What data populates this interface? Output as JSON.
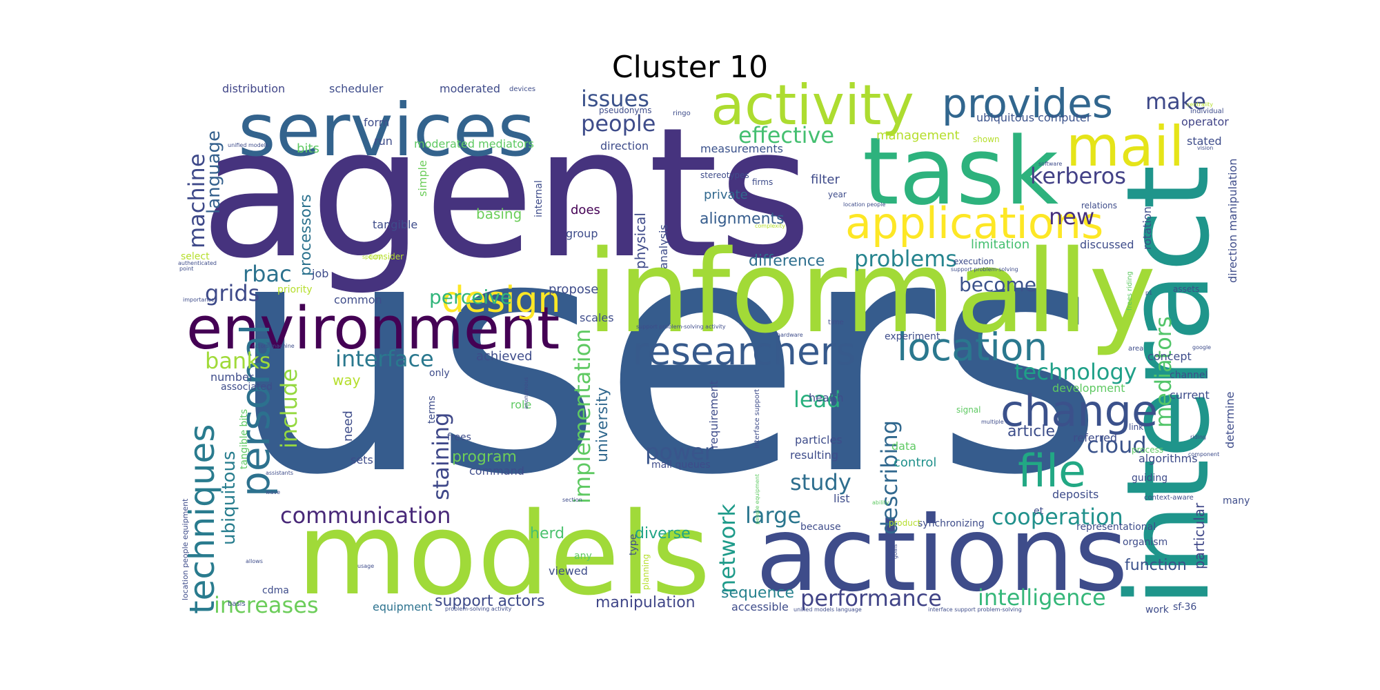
{
  "title": "Cluster 10",
  "palette": "viridis",
  "words": [
    {
      "text": "users",
      "color": "#365c8d"
    },
    {
      "text": "agents",
      "color": "#46337e"
    },
    {
      "text": "informally",
      "color": "#a2da37"
    },
    {
      "text": "models",
      "color": "#a0da39"
    },
    {
      "text": "interact",
      "color": "#1f958b"
    },
    {
      "text": "actions",
      "color": "#3e4c8a"
    },
    {
      "text": "task",
      "color": "#2db27d"
    },
    {
      "text": "services",
      "color": "#33638d"
    },
    {
      "text": "environment",
      "color": "#440154"
    },
    {
      "text": "activity",
      "color": "#addc30"
    },
    {
      "text": "mail",
      "color": "#e5e419"
    },
    {
      "text": "applications",
      "color": "#fde725"
    },
    {
      "text": "provides",
      "color": "#31668e"
    },
    {
      "text": "researchers",
      "color": "#375a8c"
    },
    {
      "text": "location",
      "color": "#2a788e"
    },
    {
      "text": "design",
      "color": "#fde725"
    },
    {
      "text": "change",
      "color": "#3b518b"
    },
    {
      "text": "file",
      "color": "#22a884"
    },
    {
      "text": "personal",
      "color": "#2c718e"
    },
    {
      "text": "techniques",
      "color": "#297b8e"
    },
    {
      "text": "make",
      "color": "#3e4989"
    },
    {
      "text": "issues",
      "color": "#3b528b"
    },
    {
      "text": "people",
      "color": "#3e4c8a"
    },
    {
      "text": "effective",
      "color": "#44bf70"
    },
    {
      "text": "kerberos",
      "color": "#424086"
    },
    {
      "text": "problems",
      "color": "#25848e"
    },
    {
      "text": "new",
      "color": "#46307e"
    },
    {
      "text": "rbac",
      "color": "#2c728e"
    },
    {
      "text": "grids",
      "color": "#3e4a89"
    },
    {
      "text": "banks",
      "color": "#a0da39"
    },
    {
      "text": "interface",
      "color": "#2a788e"
    },
    {
      "text": "technology",
      "color": "#1fa088"
    },
    {
      "text": "communication",
      "color": "#482878"
    },
    {
      "text": "cooperation",
      "color": "#21918c"
    },
    {
      "text": "performance",
      "color": "#414487"
    },
    {
      "text": "intelligence",
      "color": "#35b779"
    },
    {
      "text": "increases",
      "color": "#6ccd5a"
    },
    {
      "text": "lead",
      "color": "#2ab07f"
    },
    {
      "text": "study",
      "color": "#2e6e8e"
    },
    {
      "text": "large",
      "color": "#2a768e"
    },
    {
      "text": "power",
      "color": "#39558c"
    },
    {
      "text": "cloud",
      "color": "#3a538b"
    },
    {
      "text": "describing",
      "color": "#31688e"
    },
    {
      "text": "mediators",
      "color": "#52c569"
    },
    {
      "text": "network",
      "color": "#1e9b8a"
    },
    {
      "text": "implementation",
      "color": "#5ec962"
    },
    {
      "text": "staining",
      "color": "#3f4889"
    },
    {
      "text": "include",
      "color": "#95d840"
    },
    {
      "text": "ubiquitous",
      "color": "#287d8e"
    },
    {
      "text": "machine",
      "color": "#3e4989"
    },
    {
      "text": "language",
      "color": "#34608d"
    },
    {
      "text": "perceive",
      "color": "#31b57b"
    },
    {
      "text": "alignments",
      "color": "#365d8d"
    },
    {
      "text": "difference",
      "color": "#2e6f8e"
    },
    {
      "text": "become",
      "color": "#3b528b"
    },
    {
      "text": "article",
      "color": "#3d4e8a"
    },
    {
      "text": "university",
      "color": "#31688e"
    },
    {
      "text": "program",
      "color": "#6ece58"
    },
    {
      "text": "manipulation",
      "color": "#404688"
    },
    {
      "text": "support actors",
      "color": "#3e4a89"
    },
    {
      "text": "equipment",
      "color": "#2c728e"
    },
    {
      "text": "herd",
      "color": "#4ac16d"
    },
    {
      "text": "diverse",
      "color": "#20a486"
    },
    {
      "text": "sequence",
      "color": "#26828e"
    },
    {
      "text": "function",
      "color": "#3b528b"
    },
    {
      "text": "particular",
      "color": "#3f4788"
    },
    {
      "text": "processors",
      "color": "#2c728e"
    },
    {
      "text": "basing",
      "color": "#6ccd5a"
    },
    {
      "text": "distribution",
      "color": "#404588"
    },
    {
      "text": "scheduler",
      "color": "#3e4c8a"
    },
    {
      "text": "moderated",
      "color": "#3e4a89"
    },
    {
      "text": "moderated mediators",
      "color": "#5ec962"
    },
    {
      "text": "management",
      "color": "#b5de2b"
    },
    {
      "text": "ubiquitous computer",
      "color": "#3b528b"
    },
    {
      "text": "operator",
      "color": "#414487"
    },
    {
      "text": "stated",
      "color": "#3e4c8a"
    },
    {
      "text": "bits",
      "color": "#5ec962"
    },
    {
      "text": "filter",
      "color": "#3e4a89"
    },
    {
      "text": "private",
      "color": "#31688e"
    },
    {
      "text": "measurements",
      "color": "#3b528b"
    },
    {
      "text": "direction",
      "color": "#3e4c8a"
    },
    {
      "text": "run",
      "color": "#3e4c8a"
    },
    {
      "text": "form",
      "color": "#3e4c8a"
    },
    {
      "text": "does",
      "color": "#440154"
    },
    {
      "text": "group",
      "color": "#3e4c8a"
    },
    {
      "text": "tangible",
      "color": "#3e4c8a"
    },
    {
      "text": "job",
      "color": "#3e4c8a"
    },
    {
      "text": "simple",
      "color": "#6ccd5a"
    },
    {
      "text": "internal",
      "color": "#3e4c8a"
    },
    {
      "text": "physical",
      "color": "#3e4a89"
    },
    {
      "text": "analysis",
      "color": "#3e4c8a"
    },
    {
      "text": "propose",
      "color": "#3e4c8a"
    },
    {
      "text": "common",
      "color": "#3e4c8a"
    },
    {
      "text": "scales",
      "color": "#3e4c8a"
    },
    {
      "text": "achieved",
      "color": "#3e4c8a"
    },
    {
      "text": "limitation",
      "color": "#44bf70"
    },
    {
      "text": "discussed",
      "color": "#3e4c8a"
    },
    {
      "text": "rotation",
      "color": "#3e4c8a"
    },
    {
      "text": "direction manipulation",
      "color": "#3e4c8a"
    },
    {
      "text": "concept",
      "color": "#3e4c8a"
    },
    {
      "text": "channel",
      "color": "#3e4c8a"
    },
    {
      "text": "current",
      "color": "#3e4c8a"
    },
    {
      "text": "determine",
      "color": "#3e4c8a"
    },
    {
      "text": "experiment",
      "color": "#3e4c8a"
    },
    {
      "text": "development",
      "color": "#5ec962"
    },
    {
      "text": "health",
      "color": "#3e4c8a"
    },
    {
      "text": "requirement",
      "color": "#3e4c8a"
    },
    {
      "text": "way",
      "color": "#b5de2b"
    },
    {
      "text": "number",
      "color": "#3e4c8a"
    },
    {
      "text": "associated",
      "color": "#3e4c8a"
    },
    {
      "text": "need",
      "color": "#3e4c8a"
    },
    {
      "text": "role",
      "color": "#5ec962"
    },
    {
      "text": "terms",
      "color": "#3e4c8a"
    },
    {
      "text": "only",
      "color": "#3e4c8a"
    },
    {
      "text": "sets",
      "color": "#3e4c8a"
    },
    {
      "text": "command",
      "color": "#3e4c8a"
    },
    {
      "text": "mail queues",
      "color": "#3e4c8a"
    },
    {
      "text": "particles",
      "color": "#3e4c8a"
    },
    {
      "text": "resulting",
      "color": "#3e4c8a"
    },
    {
      "text": "control",
      "color": "#21918c"
    },
    {
      "text": "referred",
      "color": "#3e4c8a"
    },
    {
      "text": "deposits",
      "color": "#3e4c8a"
    },
    {
      "text": "algorithms",
      "color": "#3e4c8a"
    },
    {
      "text": "data",
      "color": "#5ec962"
    },
    {
      "text": "list",
      "color": "#3e4c8a"
    },
    {
      "text": "guiding",
      "color": "#3e4c8a"
    },
    {
      "text": "process",
      "color": "#5ec962"
    },
    {
      "text": "signal",
      "color": "#5ec962"
    },
    {
      "text": "link",
      "color": "#3e4c8a"
    },
    {
      "text": "many",
      "color": "#3e4c8a"
    },
    {
      "text": "synchronizing",
      "color": "#3e4c8a"
    },
    {
      "text": "because",
      "color": "#3e4c8a"
    },
    {
      "text": "product",
      "color": "#b5de2b"
    },
    {
      "text": "representational",
      "color": "#3e4c8a"
    },
    {
      "text": "organism",
      "color": "#3e4c8a"
    },
    {
      "text": "et",
      "color": "#3e4c8a"
    },
    {
      "text": "viewed",
      "color": "#3e4c8a"
    },
    {
      "text": "any",
      "color": "#5ec962"
    },
    {
      "text": "type",
      "color": "#3e4c8a"
    },
    {
      "text": "planning",
      "color": "#b5de2b"
    },
    {
      "text": "accessible",
      "color": "#3e4c8a"
    },
    {
      "text": "work",
      "color": "#3e4c8a"
    },
    {
      "text": "sf-36",
      "color": "#3e4c8a"
    },
    {
      "text": "cdma",
      "color": "#3e4c8a"
    },
    {
      "text": "frees",
      "color": "#3e4c8a"
    },
    {
      "text": "tangible bits",
      "color": "#5ec962"
    },
    {
      "text": "location people equipment",
      "color": "#3e4c8a"
    },
    {
      "text": "select",
      "color": "#b5de2b"
    },
    {
      "text": "assets",
      "color": "#3e4c8a"
    },
    {
      "text": "time",
      "color": "#3e4c8a"
    },
    {
      "text": "year",
      "color": "#3e4c8a"
    },
    {
      "text": "firms",
      "color": "#3e4c8a"
    },
    {
      "text": "stereotypes",
      "color": "#3e4c8a"
    },
    {
      "text": "pseudonyms",
      "color": "#3e4c8a"
    },
    {
      "text": "devices",
      "color": "#3e4c8a"
    },
    {
      "text": "shown",
      "color": "#b5de2b"
    },
    {
      "text": "individual",
      "color": "#3e4c8a"
    },
    {
      "text": "centrality",
      "color": "#b5de2b"
    },
    {
      "text": "vision",
      "color": "#3e4c8a"
    },
    {
      "text": "software",
      "color": "#3e4c8a"
    },
    {
      "text": "relations",
      "color": "#3e4c8a"
    },
    {
      "text": "execution",
      "color": "#3e4c8a"
    },
    {
      "text": "priority",
      "color": "#b5de2b"
    },
    {
      "text": "consider",
      "color": "#b5de2b"
    },
    {
      "text": "importance",
      "color": "#3e4c8a"
    },
    {
      "text": "point",
      "color": "#3e4c8a"
    },
    {
      "text": "authenticated",
      "color": "#3e4c8a"
    },
    {
      "text": "unified models",
      "color": "#3e4c8a"
    },
    {
      "text": "ringo",
      "color": "#3e4c8a"
    },
    {
      "text": "hardware",
      "color": "#3e4c8a"
    },
    {
      "text": "support problem-solving",
      "color": "#3e4c8a"
    },
    {
      "text": "support problem-solving activity",
      "color": "#3e4c8a"
    },
    {
      "text": "interface support",
      "color": "#3e4c8a"
    },
    {
      "text": "interface support problem-solving",
      "color": "#3e4c8a"
    },
    {
      "text": "unified models language",
      "color": "#3e4c8a"
    },
    {
      "text": "problem-solving activity",
      "color": "#3e4c8a"
    },
    {
      "text": "context-aware",
      "color": "#3e4c8a"
    },
    {
      "text": "multiple",
      "color": "#3e4c8a"
    },
    {
      "text": "actors machine",
      "color": "#3e4c8a"
    },
    {
      "text": "location people",
      "color": "#3e4c8a"
    },
    {
      "text": "complexity",
      "color": "#b5de2b"
    },
    {
      "text": "frees riding",
      "color": "#5ec962"
    },
    {
      "text": "people equipment",
      "color": "#5ec962"
    },
    {
      "text": "basis",
      "color": "#3e4c8a"
    },
    {
      "text": "usage",
      "color": "#3e4c8a"
    },
    {
      "text": "allows",
      "color": "#3e4c8a"
    },
    {
      "text": "assistants",
      "color": "#3e4c8a"
    },
    {
      "text": "section",
      "color": "#3e4c8a"
    },
    {
      "text": "ability",
      "color": "#5ec962"
    },
    {
      "text": "goals",
      "color": "#3e4c8a"
    },
    {
      "text": "area",
      "color": "#3e4c8a"
    },
    {
      "text": "google",
      "color": "#3e4c8a"
    },
    {
      "text": "specify",
      "color": "#b5de2b"
    },
    {
      "text": "riding",
      "color": "#3e4c8a"
    },
    {
      "text": "component",
      "color": "#3e4c8a"
    },
    {
      "text": "p1",
      "color": "#3e4c8a"
    },
    {
      "text": "wave",
      "color": "#3e4c8a"
    },
    {
      "text": "anonymous",
      "color": "#3e4c8a"
    }
  ]
}
